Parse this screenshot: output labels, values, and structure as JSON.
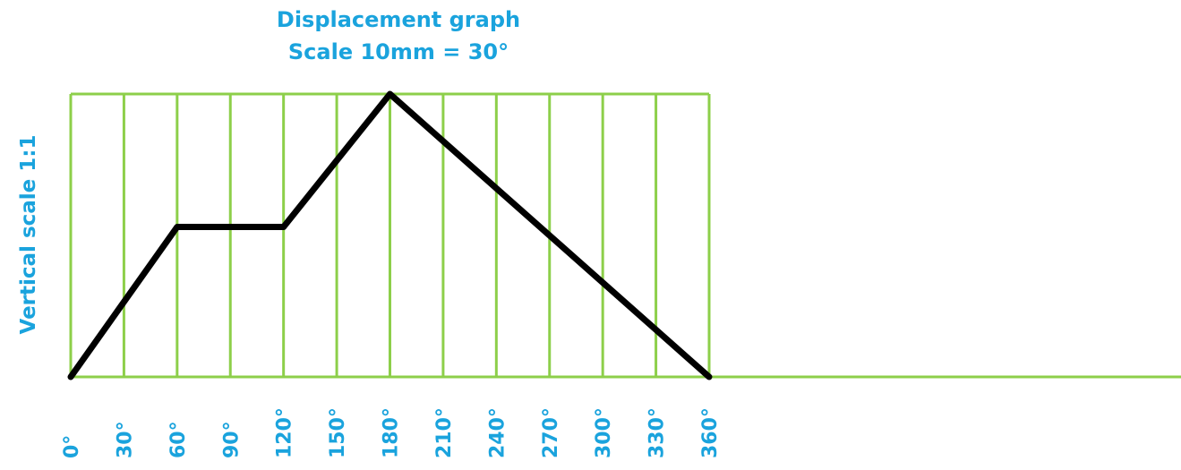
{
  "chart_data": {
    "type": "line",
    "title": "Displacement graph",
    "subtitle": "Scale 10mm = 30°",
    "ylabel": "Vertical scale 1:1",
    "xlabel": "",
    "x_ticks": [
      "0°",
      "30°",
      "60°",
      "90°",
      "120°",
      "150°",
      "180°",
      "210°",
      "240°",
      "270°",
      "300°",
      "330°",
      "360°"
    ],
    "x_tick_values": [
      0,
      30,
      60,
      90,
      120,
      150,
      180,
      210,
      240,
      270,
      300,
      330,
      360
    ],
    "xlim": [
      0,
      360
    ],
    "ylim": [
      0,
      1
    ],
    "grid": true,
    "series": [
      {
        "x": [
          0,
          60,
          120,
          180,
          360
        ],
        "y": [
          0,
          0.53,
          0.53,
          1.0,
          0
        ]
      }
    ],
    "colors": {
      "text": "#1aa3dd",
      "grid": "#8dcf4a",
      "line": "#000000"
    }
  }
}
